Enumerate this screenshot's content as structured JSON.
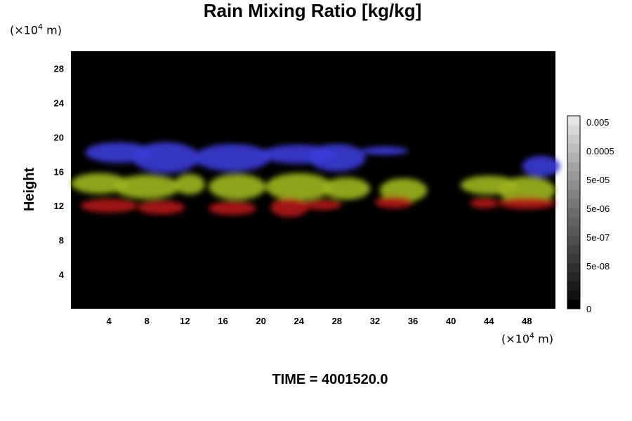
{
  "chart_data": {
    "type": "heatmap",
    "title": "Rain Mixing Ratio [kg/kg]",
    "ylabel": "Height",
    "y_unit": {
      "prefix": "(×10",
      "exp": "4",
      "suffix": " m)"
    },
    "x_unit": {
      "prefix": "(×10",
      "exp": "4",
      "suffix": " m)"
    },
    "x_ticks": [
      "4",
      "8",
      "12",
      "16",
      "20",
      "24",
      "28",
      "32",
      "36",
      "40",
      "44",
      "48"
    ],
    "y_ticks": [
      "4",
      "8",
      "12",
      "16",
      "20",
      "24",
      "28"
    ],
    "xlim": [
      0,
      51
    ],
    "ylim": [
      0,
      30
    ],
    "background": "#000000",
    "colorbar": {
      "labels": [
        "0.005",
        "0.0005",
        "5e-05",
        "5e-06",
        "5e-07",
        "5e-08",
        "0"
      ],
      "colors": [
        "#000000",
        "#111111",
        "#1c1c1c",
        "#262626",
        "#303030",
        "#3a3a3a",
        "#444444",
        "#4e4e4e",
        "#585858",
        "#626262",
        "#6c6c6c",
        "#777777",
        "#828282",
        "#8d8d8d",
        "#989898",
        "#a4a4a4",
        "#b0b0b0",
        "#bdbdbd",
        "#cacaca",
        "#d8d8d8",
        "#e6e6e6"
      ]
    },
    "layers": [
      {
        "name": "upper",
        "color": "#3a3ad8",
        "blobs": [
          [
            5,
            18.2,
            3.5,
            1.2
          ],
          [
            10,
            17.6,
            3.5,
            1.8
          ],
          [
            17,
            17.6,
            4,
            1.6
          ],
          [
            24,
            18,
            4,
            1.1
          ],
          [
            28,
            17.6,
            3,
            1.6
          ],
          [
            33,
            18.4,
            2.5,
            0.5
          ],
          [
            49.5,
            16.6,
            2,
            1.2
          ]
        ]
      },
      {
        "name": "middle",
        "color": "#9fb51c",
        "blobs": [
          [
            3,
            14.6,
            3,
            1.2
          ],
          [
            8,
            14.2,
            3.5,
            1.4
          ],
          [
            12.5,
            14.5,
            1.6,
            1.2
          ],
          [
            17.5,
            14.2,
            3,
            1.5
          ],
          [
            24,
            14.2,
            3.5,
            1.6
          ],
          [
            29,
            14,
            2.5,
            1.3
          ],
          [
            35,
            13.8,
            2.5,
            1.4
          ],
          [
            44,
            14.4,
            3,
            1.1
          ],
          [
            48,
            13.8,
            3,
            1.6
          ]
        ]
      },
      {
        "name": "lower",
        "color": "#b21818",
        "blobs": [
          [
            4,
            12,
            3,
            0.8
          ],
          [
            9.5,
            11.8,
            2.5,
            0.8
          ],
          [
            17,
            11.7,
            2.5,
            0.8
          ],
          [
            23,
            11.8,
            2,
            1.1
          ],
          [
            26.5,
            12.1,
            2,
            0.6
          ],
          [
            34,
            12.4,
            2,
            0.7
          ],
          [
            43.5,
            12.3,
            1.5,
            0.6
          ],
          [
            48,
            12.3,
            3,
            0.7
          ]
        ]
      }
    ]
  },
  "time_label": "TIME = 4001520.0"
}
